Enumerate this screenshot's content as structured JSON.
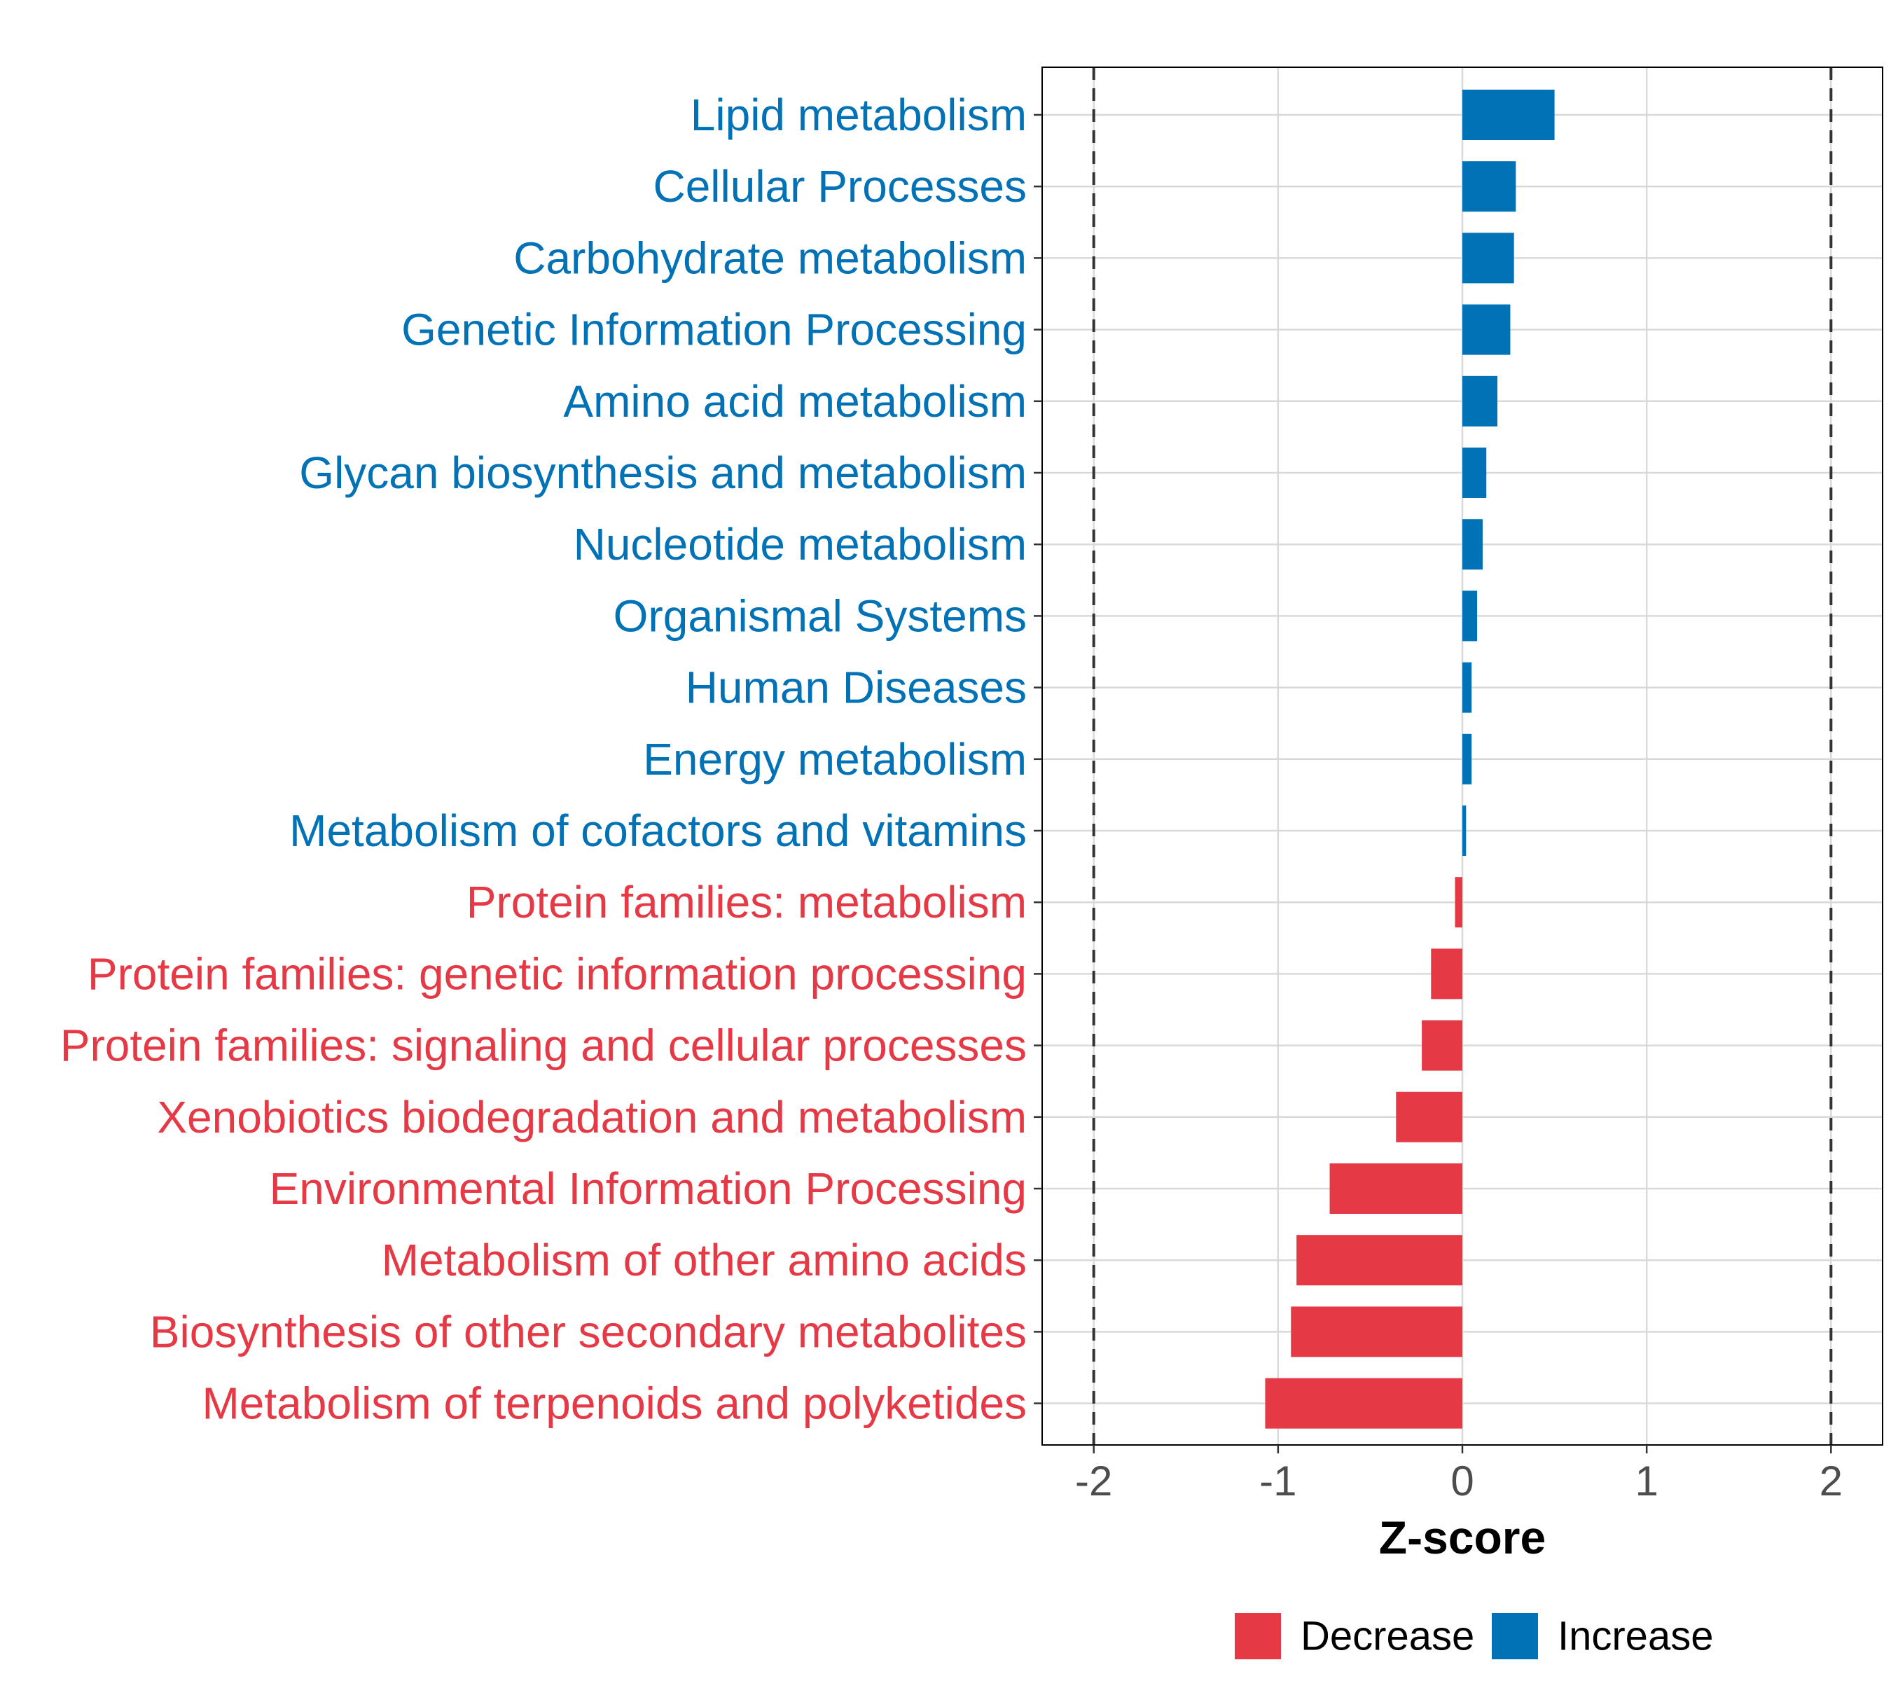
{
  "colors": {
    "increase": "#0072B5",
    "decrease": "#E63946",
    "grid": "#d9d9d9",
    "axis": "#000000",
    "threshold": "#333333"
  },
  "chart_data": {
    "type": "bar",
    "orientation": "horizontal",
    "title": "",
    "xlabel": "Z-score",
    "ylabel": "",
    "xlim": [
      -2.28,
      2.28
    ],
    "xticks": [
      -2,
      -1,
      0,
      1,
      2
    ],
    "xtick_labels": [
      "-2",
      "-1",
      "0",
      "1",
      "2"
    ],
    "reference_lines": [
      -2,
      2
    ],
    "grid": true,
    "legend": {
      "placement": "bottom",
      "entries": [
        {
          "label": "Decrease",
          "color": "#E63946"
        },
        {
          "label": "Increase",
          "color": "#0072B5"
        }
      ]
    },
    "categories": [
      "Lipid metabolism",
      "Cellular Processes",
      "Carbohydrate metabolism",
      "Genetic Information Processing",
      "Amino acid metabolism",
      "Glycan biosynthesis and metabolism",
      "Nucleotide metabolism",
      "Organismal Systems",
      "Human Diseases",
      "Energy metabolism",
      "Metabolism of cofactors and vitamins",
      "Protein families: metabolism",
      "Protein families: genetic information processing",
      "Protein families: signaling and cellular processes",
      "Xenobiotics biodegradation and metabolism",
      "Environmental Information Processing",
      "Metabolism of other amino acids",
      "Biosynthesis of other secondary metabolites",
      "Metabolism of terpenoids and polyketides"
    ],
    "values": [
      0.5,
      0.29,
      0.28,
      0.26,
      0.19,
      0.13,
      0.11,
      0.08,
      0.05,
      0.05,
      0.02,
      -0.04,
      -0.17,
      -0.22,
      -0.36,
      -0.72,
      -0.9,
      -0.93,
      -1.07
    ],
    "groups": [
      "Increase",
      "Increase",
      "Increase",
      "Increase",
      "Increase",
      "Increase",
      "Increase",
      "Increase",
      "Increase",
      "Increase",
      "Increase",
      "Decrease",
      "Decrease",
      "Decrease",
      "Decrease",
      "Decrease",
      "Decrease",
      "Decrease",
      "Decrease"
    ]
  }
}
